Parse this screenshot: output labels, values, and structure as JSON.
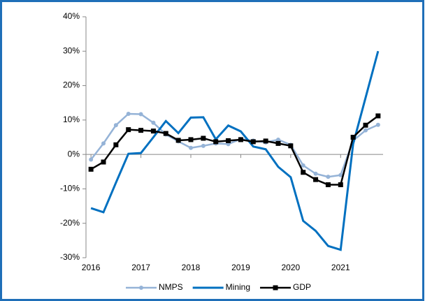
{
  "chart_data": {
    "type": "line",
    "x": [
      2016,
      2016.25,
      2016.5,
      2016.75,
      2017,
      2017.25,
      2017.5,
      2017.75,
      2018,
      2018.25,
      2018.5,
      2018.75,
      2019,
      2019.25,
      2019.5,
      2019.75,
      2020,
      2020.25,
      2020.5,
      2020.75,
      2021,
      2021.25,
      2021.5,
      2021.75
    ],
    "series": [
      {
        "name": "NMPS",
        "color": "#95b3d7",
        "marker": "circle",
        "values": [
          -1.5,
          3.2,
          8.5,
          11.8,
          11.7,
          9.2,
          5.8,
          3.8,
          1.9,
          2.5,
          3.2,
          3.0,
          4.5,
          4.0,
          3.5,
          4.3,
          2.8,
          -3.2,
          -5.6,
          -6.5,
          -6.0,
          4.0,
          7.0,
          8.6
        ]
      },
      {
        "name": "Mining",
        "color": "#0070c0",
        "marker": "none",
        "values": [
          -15.6,
          -16.8,
          -8.2,
          0.2,
          0.4,
          5.0,
          9.7,
          6.2,
          10.7,
          10.8,
          4.4,
          8.4,
          6.7,
          2.3,
          1.5,
          -3.6,
          -6.6,
          -19.3,
          -22.2,
          -26.6,
          -27.7,
          3.0,
          16.5,
          30.0
        ]
      },
      {
        "name": "GDP",
        "color": "#000000",
        "marker": "square",
        "values": [
          -4.3,
          -2.2,
          2.8,
          7.2,
          7.0,
          6.8,
          6.1,
          4.1,
          4.3,
          4.7,
          3.7,
          4.0,
          4.3,
          3.7,
          3.9,
          3.2,
          2.5,
          -5.2,
          -7.3,
          -8.8,
          -8.8,
          5.0,
          8.5,
          11.2
        ]
      }
    ],
    "xlim": [
      2015.9,
      2021.85
    ],
    "xticks": [
      2016,
      2017,
      2018,
      2019,
      2020,
      2021
    ],
    "ylim": [
      -30,
      40
    ],
    "yticks": [
      {
        "value": -30,
        "label": "-30%"
      },
      {
        "value": -20,
        "label": "-20%"
      },
      {
        "value": -10,
        "label": "-10%"
      },
      {
        "value": 0,
        "label": "0%"
      },
      {
        "value": 10,
        "label": "10%"
      },
      {
        "value": 20,
        "label": "20%"
      },
      {
        "value": 30,
        "label": "30%"
      },
      {
        "value": 40,
        "label": "40%"
      }
    ],
    "legend": "bottom"
  }
}
